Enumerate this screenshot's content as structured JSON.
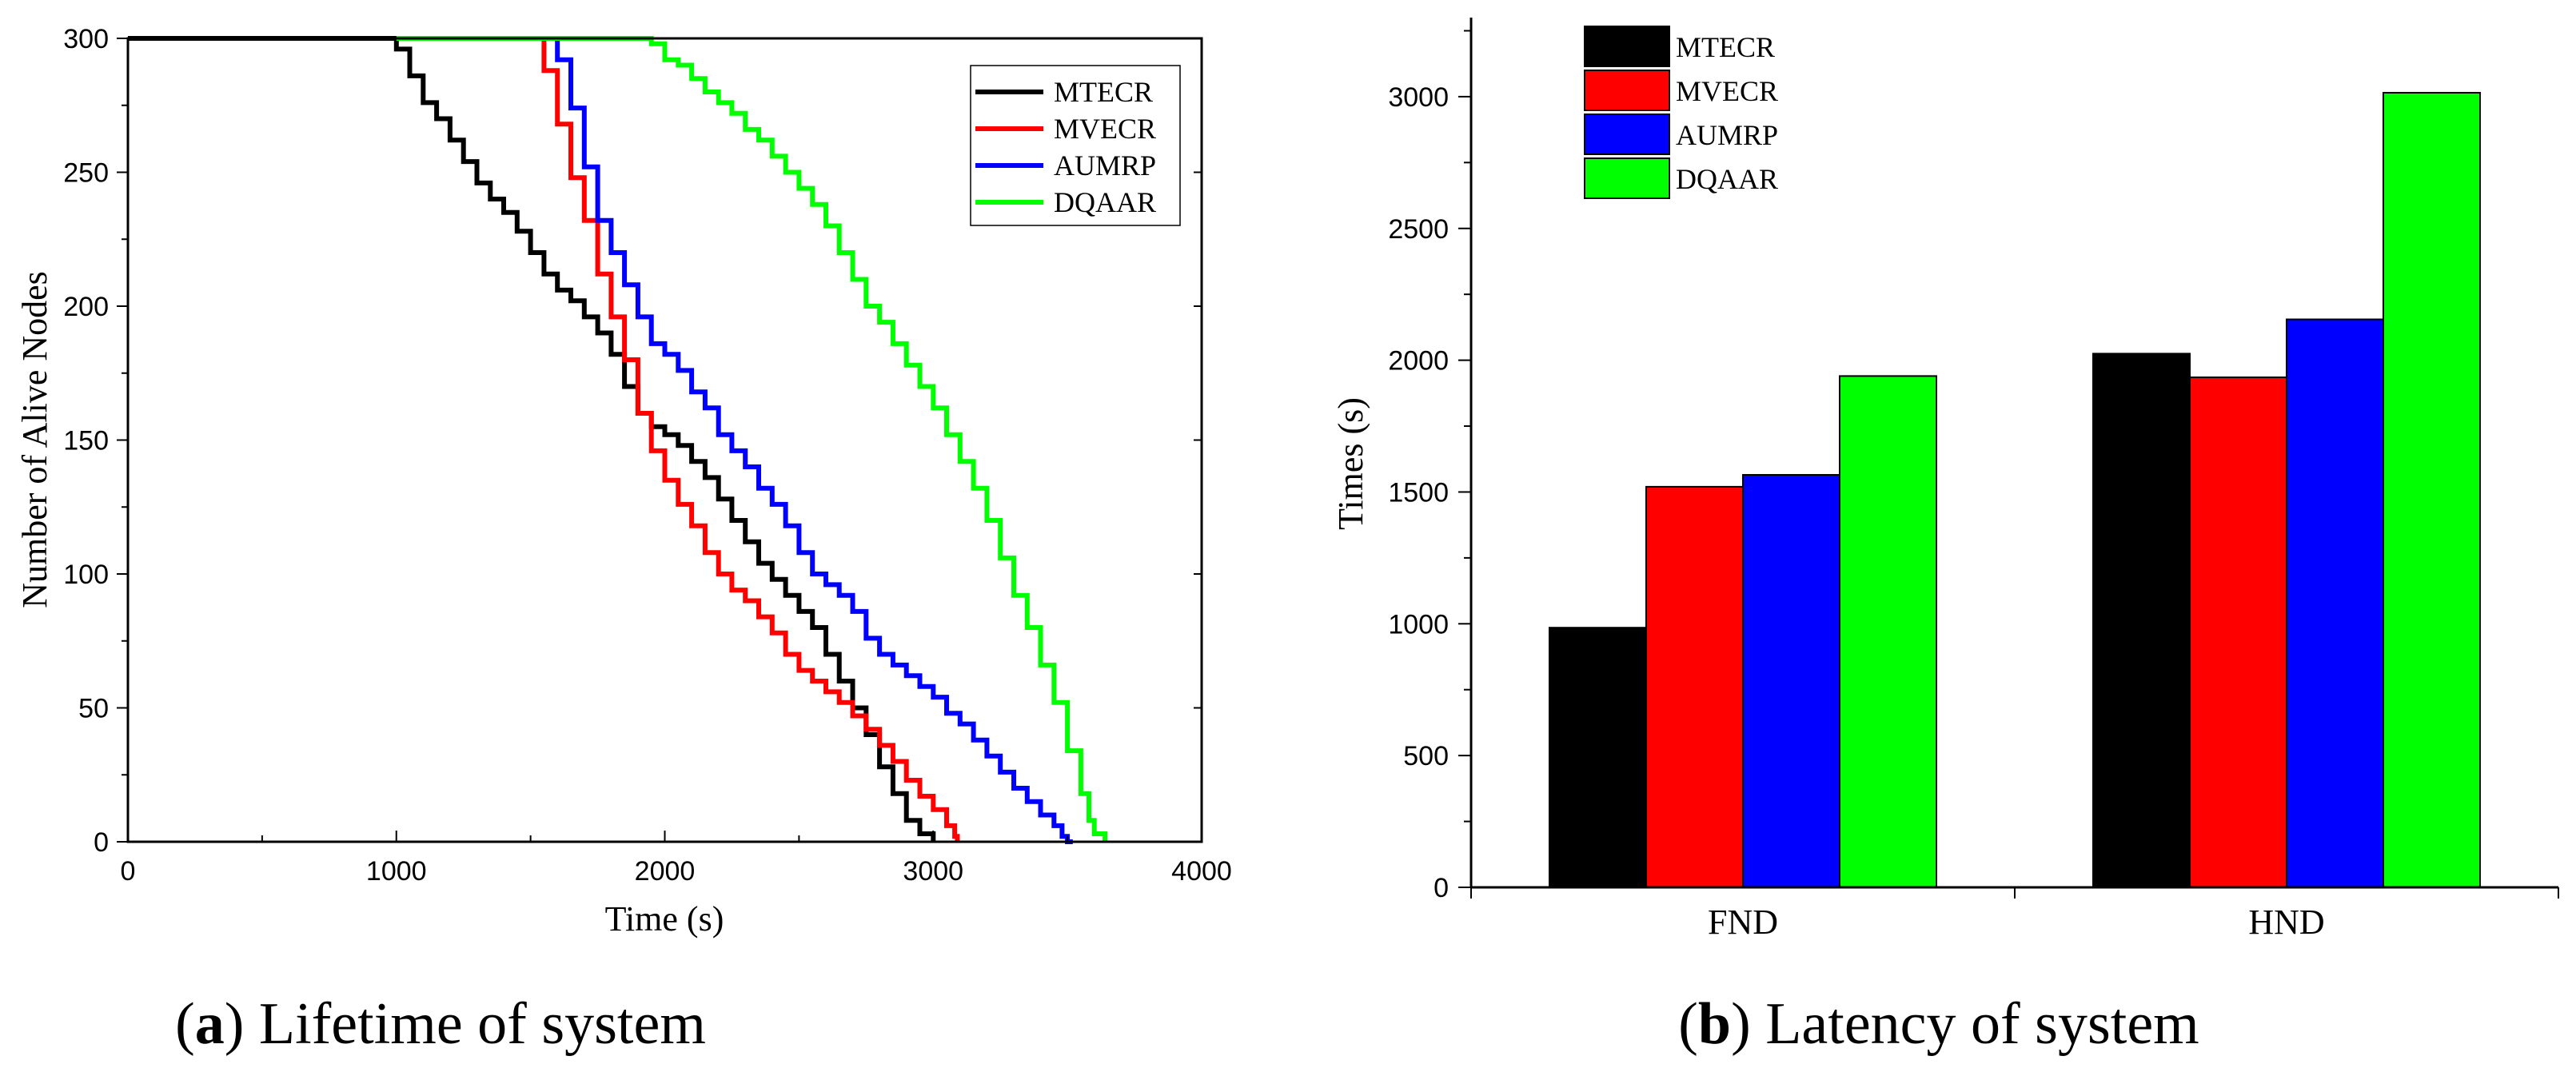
{
  "chart_data": [
    {
      "type": "line",
      "caption_letter": "a",
      "caption_text": "Lifetime of system",
      "title": "",
      "xlabel": "Time (s)",
      "ylabel": "Number  of  Alive Nodes",
      "xlim": [
        0,
        4000
      ],
      "ylim": [
        0,
        300
      ],
      "xticks": [
        0,
        1000,
        2000,
        3000,
        4000
      ],
      "yticks": [
        0,
        50,
        100,
        150,
        200,
        250,
        300
      ],
      "legend_position": "top-right",
      "series": [
        {
          "name": "MTECR",
          "color": "#000000",
          "x": [
            0,
            980,
            1000,
            1050,
            1100,
            1150,
            1200,
            1250,
            1300,
            1350,
            1400,
            1450,
            1500,
            1550,
            1600,
            1650,
            1700,
            1750,
            1800,
            1850,
            1900,
            1950,
            2000,
            2050,
            2100,
            2150,
            2200,
            2250,
            2300,
            2350,
            2400,
            2450,
            2500,
            2550,
            2600,
            2650,
            2700,
            2750,
            2800,
            2850,
            2900,
            2950,
            3000
          ],
          "y": [
            300,
            300,
            296,
            286,
            276,
            270,
            262,
            254,
            246,
            240,
            235,
            228,
            220,
            212,
            206,
            202,
            196,
            190,
            182,
            170,
            160,
            155,
            152,
            148,
            142,
            136,
            128,
            120,
            112,
            104,
            98,
            92,
            86,
            80,
            70,
            60,
            50,
            40,
            28,
            18,
            8,
            3,
            0
          ]
        },
        {
          "name": "MVECR",
          "color": "#ff0000",
          "x": [
            1520,
            1550,
            1600,
            1650,
            1700,
            1750,
            1800,
            1850,
            1900,
            1950,
            2000,
            2050,
            2100,
            2150,
            2200,
            2250,
            2300,
            2350,
            2400,
            2450,
            2500,
            2550,
            2600,
            2650,
            2700,
            2750,
            2800,
            2850,
            2900,
            2950,
            3000,
            3050,
            3080,
            3090
          ],
          "y": [
            300,
            288,
            268,
            248,
            232,
            212,
            196,
            180,
            160,
            146,
            135,
            126,
            118,
            108,
            100,
            94,
            90,
            84,
            78,
            70,
            64,
            60,
            56,
            52,
            47,
            42,
            36,
            30,
            23,
            17,
            12,
            6,
            2,
            0
          ]
        },
        {
          "name": "AUMRP",
          "color": "#0000ff",
          "x": [
            1560,
            1600,
            1650,
            1700,
            1750,
            1800,
            1850,
            1900,
            1950,
            2000,
            2050,
            2100,
            2150,
            2200,
            2250,
            2300,
            2350,
            2400,
            2450,
            2500,
            2550,
            2600,
            2650,
            2700,
            2750,
            2800,
            2850,
            2900,
            2950,
            3000,
            3050,
            3100,
            3150,
            3200,
            3250,
            3300,
            3350,
            3400,
            3450,
            3480,
            3500,
            3520
          ],
          "y": [
            300,
            292,
            274,
            252,
            232,
            220,
            208,
            196,
            186,
            182,
            176,
            168,
            162,
            152,
            146,
            140,
            132,
            126,
            118,
            108,
            100,
            96,
            92,
            86,
            76,
            70,
            66,
            62,
            58,
            54,
            48,
            44,
            38,
            32,
            26,
            20,
            15,
            10,
            6,
            2,
            0,
            0
          ]
        },
        {
          "name": "DQAAR",
          "color": "#00ff00",
          "x": [
            1000,
            1900,
            1950,
            2000,
            2050,
            2100,
            2150,
            2200,
            2250,
            2300,
            2350,
            2400,
            2450,
            2500,
            2550,
            2600,
            2650,
            2700,
            2750,
            2800,
            2850,
            2900,
            2950,
            3000,
            3050,
            3100,
            3150,
            3200,
            3250,
            3300,
            3350,
            3400,
            3450,
            3500,
            3550,
            3580,
            3600,
            3640
          ],
          "y": [
            300,
            300,
            298,
            292,
            290,
            285,
            280,
            276,
            272,
            266,
            262,
            256,
            250,
            244,
            238,
            230,
            220,
            210,
            200,
            194,
            186,
            178,
            170,
            162,
            152,
            142,
            132,
            120,
            106,
            92,
            80,
            66,
            52,
            34,
            18,
            8,
            3,
            0
          ]
        }
      ]
    },
    {
      "type": "bar",
      "caption_letter": "b",
      "caption_text": "Latency of system",
      "title": "",
      "xlabel": "",
      "ylabel": "Times (s)",
      "ylim": [
        0,
        3300
      ],
      "yticks": [
        0,
        500,
        1000,
        1500,
        2000,
        2500,
        3000
      ],
      "categories": [
        "FND",
        "HND"
      ],
      "legend_position": "top-left",
      "series": [
        {
          "name": "MTECR",
          "color": "#000000",
          "values": [
            985,
            2025
          ]
        },
        {
          "name": "MVECR",
          "color": "#ff0000",
          "values": [
            1520,
            1935
          ]
        },
        {
          "name": "AUMRP",
          "color": "#0000ff",
          "values": [
            1565,
            2155
          ]
        },
        {
          "name": "DQAAR",
          "color": "#00ff00",
          "values": [
            1940,
            3015
          ]
        }
      ]
    }
  ]
}
